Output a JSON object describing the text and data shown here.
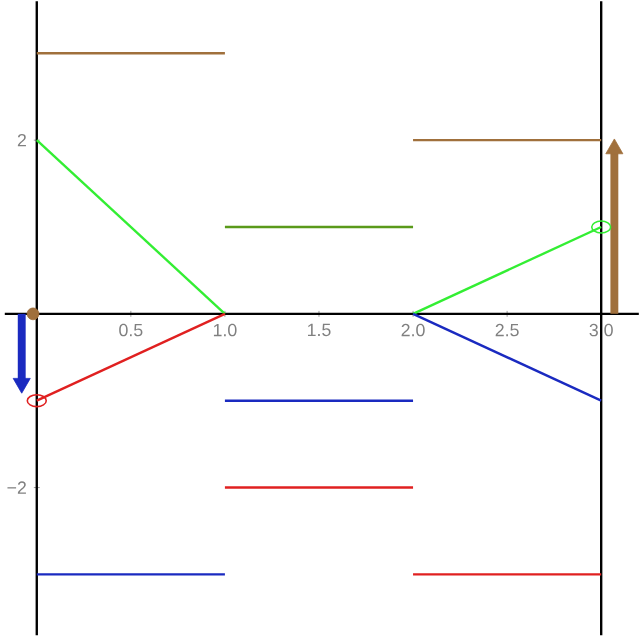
{
  "chart_data": {
    "type": "line",
    "xlim": [
      -0.17,
      3.2
    ],
    "ylim": [
      -3.7,
      3.6
    ],
    "xticks": [
      0.5,
      {
        "value": 1,
        "label": "1.0"
      },
      1.5,
      {
        "value": 2,
        "label": "2.0"
      },
      2.5,
      {
        "value": 3,
        "label": "3.0"
      }
    ],
    "yticks": [
      {
        "value": 2,
        "label": "2"
      },
      {
        "value": -2,
        "label": "−2"
      }
    ],
    "ref_lines": [
      {
        "axis": "x",
        "value": 3,
        "color": "#000000"
      }
    ],
    "series": [
      {
        "color": "#a0703c",
        "x": [
          0,
          1
        ],
        "values": [
          3,
          3
        ]
      },
      {
        "color": "#a0703c",
        "x": [
          2,
          3
        ],
        "values": [
          2,
          2
        ]
      },
      {
        "color": "#33ee33",
        "x": [
          0,
          1
        ],
        "values": [
          2,
          0
        ]
      },
      {
        "color": "#5a9a1a",
        "x": [
          1,
          2
        ],
        "values": [
          1,
          1
        ]
      },
      {
        "color": "#33ee33",
        "x": [
          2,
          3
        ],
        "values": [
          0,
          1
        ]
      },
      {
        "color": "#e02020",
        "x": [
          0,
          1
        ],
        "values": [
          -1,
          0
        ]
      },
      {
        "color": "#e02020",
        "x": [
          1,
          2
        ],
        "values": [
          -2,
          -2
        ]
      },
      {
        "color": "#e02020",
        "x": [
          2,
          3
        ],
        "values": [
          -3,
          -3
        ]
      },
      {
        "color": "#1a2ac0",
        "x": [
          0,
          1
        ],
        "values": [
          -3,
          -3
        ]
      },
      {
        "color": "#1a2ac0",
        "x": [
          1,
          2
        ],
        "values": [
          -1,
          -1
        ]
      },
      {
        "color": "#1a2ac0",
        "x": [
          2,
          3
        ],
        "values": [
          0,
          -1
        ]
      },
      {
        "color": "#a0703c",
        "x": [
          3.07,
          3.07
        ],
        "values": [
          0,
          1.9
        ],
        "marker": "triangle"
      },
      {
        "color": "#1a2ac0",
        "x": [
          -0.08,
          -0.08
        ],
        "values": [
          0,
          -0.8
        ],
        "marker": "triangle"
      },
      {
        "type": "scatter",
        "color": "#e02020",
        "x": [
          0
        ],
        "values": [
          -1
        ],
        "marker": "circle"
      },
      {
        "type": "scatter",
        "color": "#33ee33",
        "x": [
          3
        ],
        "values": [
          1
        ],
        "marker": "circle"
      },
      {
        "type": "scatter",
        "color": "#a0703c",
        "x": [
          -0.02
        ],
        "values": [
          0
        ]
      }
    ]
  }
}
